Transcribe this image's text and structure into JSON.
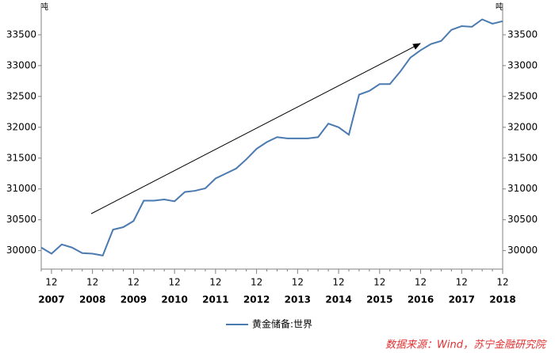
{
  "chart_data": {
    "type": "line",
    "unit": "吨",
    "categories": [
      null,
      "12",
      null,
      null,
      null,
      "12",
      null,
      null,
      null,
      "12",
      null,
      null,
      null,
      "12",
      null,
      null,
      null,
      "12",
      null,
      null,
      null,
      "12",
      null,
      null,
      null,
      "12",
      null,
      null,
      null,
      "12",
      null,
      null,
      null,
      "12",
      null,
      null,
      null,
      "12",
      null,
      null,
      null,
      "12",
      null,
      null,
      null,
      "12"
    ],
    "years": [
      "2007",
      "2008",
      "2009",
      "2010",
      "2011",
      "2012",
      "2013",
      "2014",
      "2015",
      "2016",
      "2017",
      "2018"
    ],
    "series": [
      {
        "name": "黄金储备:世界",
        "color": "#4a7ab0",
        "values": [
          30050,
          29950,
          30100,
          30050,
          29960,
          29950,
          29920,
          30340,
          30380,
          30480,
          30810,
          30810,
          30830,
          30800,
          30950,
          30970,
          31010,
          31170,
          31250,
          31330,
          31480,
          31650,
          31760,
          31840,
          31820,
          31820,
          31820,
          31840,
          32060,
          32000,
          31880,
          32530,
          32590,
          32700,
          32700,
          32900,
          33130,
          33250,
          33350,
          33400,
          33580,
          33640,
          33630,
          33750,
          33680,
          33720
        ]
      }
    ],
    "ylim": [
      29700,
      34000
    ],
    "yticks": [
      30000,
      30500,
      31000,
      31500,
      32000,
      32500,
      33000,
      33500
    ],
    "source": "数据来源：Wind，苏宁金融研究院"
  }
}
